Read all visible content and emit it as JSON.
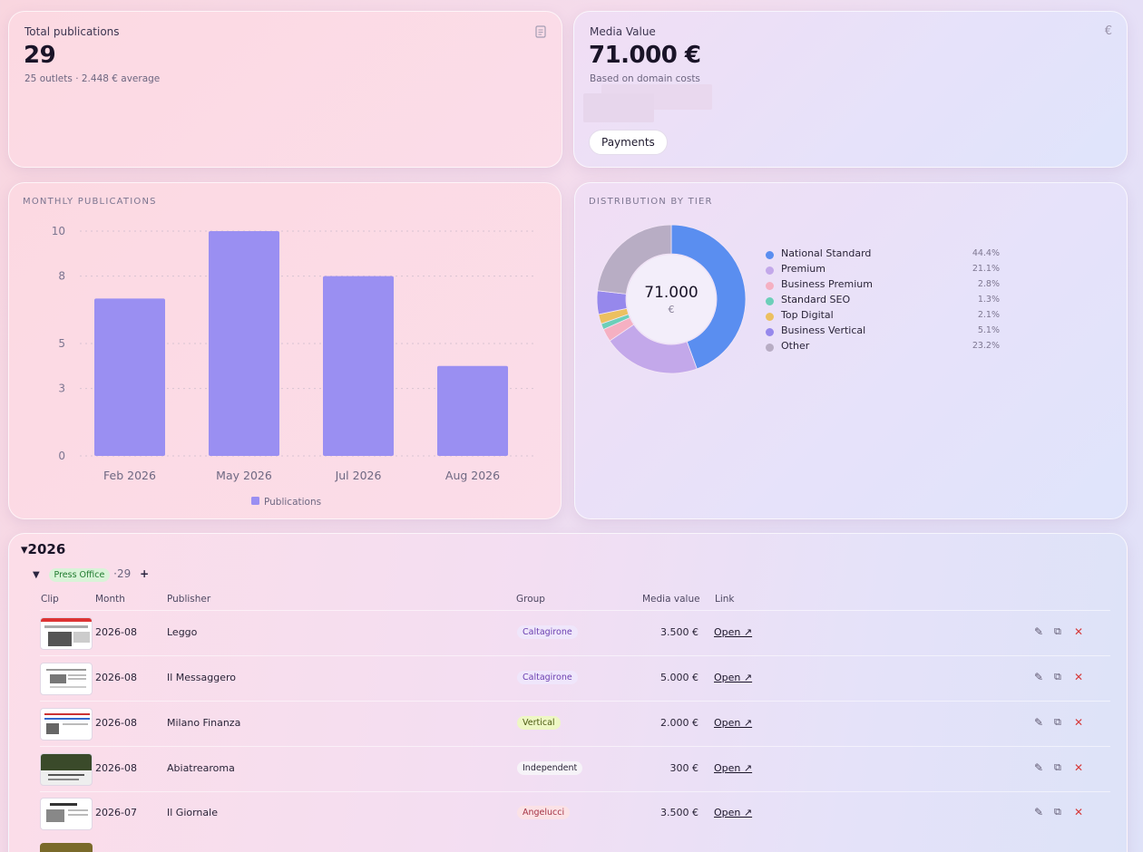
{
  "kpis": {
    "publications": {
      "title": "Total publications",
      "value": "29",
      "sub": "25 outlets · 2.448 € average",
      "icon": "document-icon"
    },
    "media": {
      "title": "Media Value",
      "value": "71.000 €",
      "sub": "Based on domain costs",
      "icon_glyph": "€",
      "payments_label": "Payments"
    }
  },
  "monthly": {
    "label": "MONTHLY PUBLICATIONS"
  },
  "chart_data": [
    {
      "type": "bar",
      "title": "MONTHLY PUBLICATIONS",
      "categories": [
        "Feb 2026",
        "May 2026",
        "Jul 2026",
        "Aug 2026"
      ],
      "series": [
        {
          "name": "Publications",
          "values": [
            7,
            10,
            8,
            4
          ],
          "color": "#9a8ff2"
        }
      ],
      "yticks": [
        "0",
        "3",
        "5",
        "8",
        "10"
      ],
      "ylim": [
        0,
        10
      ],
      "grid": true,
      "legend": "bottom"
    },
    {
      "type": "pie",
      "title": "DISTRIBUTION BY TIER",
      "center_value": "71.000",
      "center_unit": "€",
      "slices": [
        {
          "label": "National Standard",
          "pct_label": "44.4%",
          "value": 44.4,
          "color": "#5a8ef0"
        },
        {
          "label": "Premium",
          "pct_label": "21.1%",
          "value": 21.1,
          "color": "#c3a8ea"
        },
        {
          "label": "Business Premium",
          "pct_label": "2.8%",
          "value": 2.8,
          "color": "#f5b0c2"
        },
        {
          "label": "Standard SEO",
          "pct_label": "1.3%",
          "value": 1.3,
          "color": "#6ccfb9"
        },
        {
          "label": "Top Digital",
          "pct_label": "2.1%",
          "value": 2.1,
          "color": "#ecc060"
        },
        {
          "label": "Business Vertical",
          "pct_label": "5.1%",
          "value": 5.1,
          "color": "#9688ec"
        },
        {
          "label": "Other",
          "pct_label": "23.2%",
          "value": 23.2,
          "color": "#b8adc4"
        }
      ],
      "legend": "right"
    }
  ],
  "table": {
    "year": "2026",
    "group_label": "Press Office",
    "group_count": "29",
    "add_glyph": "+",
    "headers": {
      "clip": "Clip",
      "month": "Month",
      "publisher": "Publisher",
      "group": "Group",
      "media_value": "Media value",
      "link": "Link"
    },
    "rows": [
      {
        "month": "2026-08",
        "publisher": "Leggo",
        "group": "Caltagirone",
        "value": "3.500 €",
        "link": "Open ↗"
      },
      {
        "month": "2026-08",
        "publisher": "Il Messaggero",
        "group": "Caltagirone",
        "value": "5.000 €",
        "link": "Open ↗"
      },
      {
        "month": "2026-08",
        "publisher": "Milano Finanza",
        "group": "Vertical",
        "value": "2.000 €",
        "link": "Open ↗"
      },
      {
        "month": "2026-08",
        "publisher": "Abiatrearoma",
        "group": "Independent",
        "value": "300 €",
        "link": "Open ↗"
      },
      {
        "month": "2026-07",
        "publisher": "Il Giornale",
        "group": "Angelucci",
        "value": "3.500 €",
        "link": "Open ↗"
      }
    ]
  }
}
